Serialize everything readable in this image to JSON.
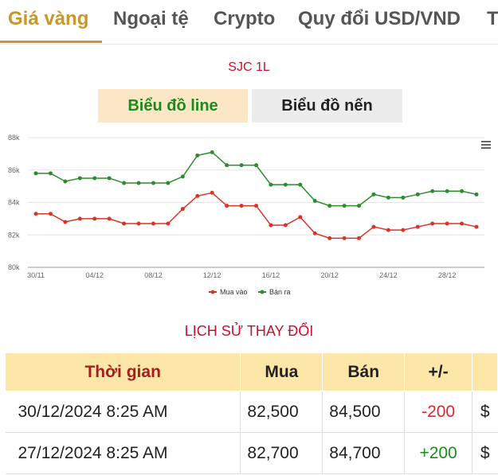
{
  "tabs": [
    {
      "label": "Giá vàng",
      "active": true
    },
    {
      "label": "Ngoại tệ",
      "active": false
    },
    {
      "label": "Crypto",
      "active": false
    },
    {
      "label": "Quy đổi USD/VND",
      "active": false
    },
    {
      "label": "T",
      "active": false
    }
  ],
  "chart_title": "SJC 1L",
  "toggles": {
    "line": "Biểu đồ line",
    "candle": "Biểu đồ nến"
  },
  "chart_data": {
    "type": "line",
    "x": [
      "30/11",
      "01/12",
      "02/12",
      "03/12",
      "04/12",
      "05/12",
      "06/12",
      "07/12",
      "08/12",
      "09/12",
      "10/12",
      "11/12",
      "12/12",
      "13/12",
      "14/12",
      "15/12",
      "16/12",
      "17/12",
      "18/12",
      "19/12",
      "20/12",
      "21/12",
      "22/12",
      "23/12",
      "24/12",
      "25/12",
      "26/12",
      "27/12",
      "28/12",
      "29/12",
      "30/12"
    ],
    "x_tick_labels": [
      "30/11",
      "04/12",
      "08/12",
      "12/12",
      "16/12",
      "20/12",
      "24/12",
      "28/12"
    ],
    "y_tick_labels": [
      "80k",
      "82k",
      "84k",
      "86k",
      "88k"
    ],
    "ylim": [
      80000,
      88000
    ],
    "series": [
      {
        "name": "Mua vào",
        "color": "#d9342b",
        "values": [
          83300,
          83300,
          82800,
          83000,
          83000,
          83000,
          82700,
          82700,
          82700,
          82700,
          83600,
          84400,
          84600,
          83800,
          83800,
          83800,
          82600,
          82600,
          83100,
          82100,
          81800,
          81800,
          81800,
          82500,
          82300,
          82300,
          82500,
          82700,
          82700,
          82700,
          82500
        ]
      },
      {
        "name": "Bán ra",
        "color": "#2e8b2e",
        "values": [
          85800,
          85800,
          85300,
          85500,
          85500,
          85500,
          85200,
          85200,
          85200,
          85200,
          85600,
          86900,
          87100,
          86300,
          86300,
          86300,
          85100,
          85100,
          85100,
          84100,
          83800,
          83800,
          83800,
          84500,
          84300,
          84300,
          84500,
          84700,
          84700,
          84700,
          84500
        ]
      }
    ],
    "legend_position": "bottom-center",
    "grid": true
  },
  "history": {
    "title": "LỊCH SỬ THAY ĐỔI",
    "headers": {
      "time": "Thời gian",
      "buy": "Mua",
      "sell": "Bán",
      "change": "+/-"
    },
    "rows": [
      {
        "time": "30/12/2024 8:25 AM",
        "buy": "82,500",
        "sell": "84,500",
        "change": "-200",
        "currency": "$"
      },
      {
        "time": "27/12/2024 8:25 AM",
        "buy": "82,700",
        "sell": "84,700",
        "change": "+200",
        "currency": "$"
      }
    ]
  }
}
